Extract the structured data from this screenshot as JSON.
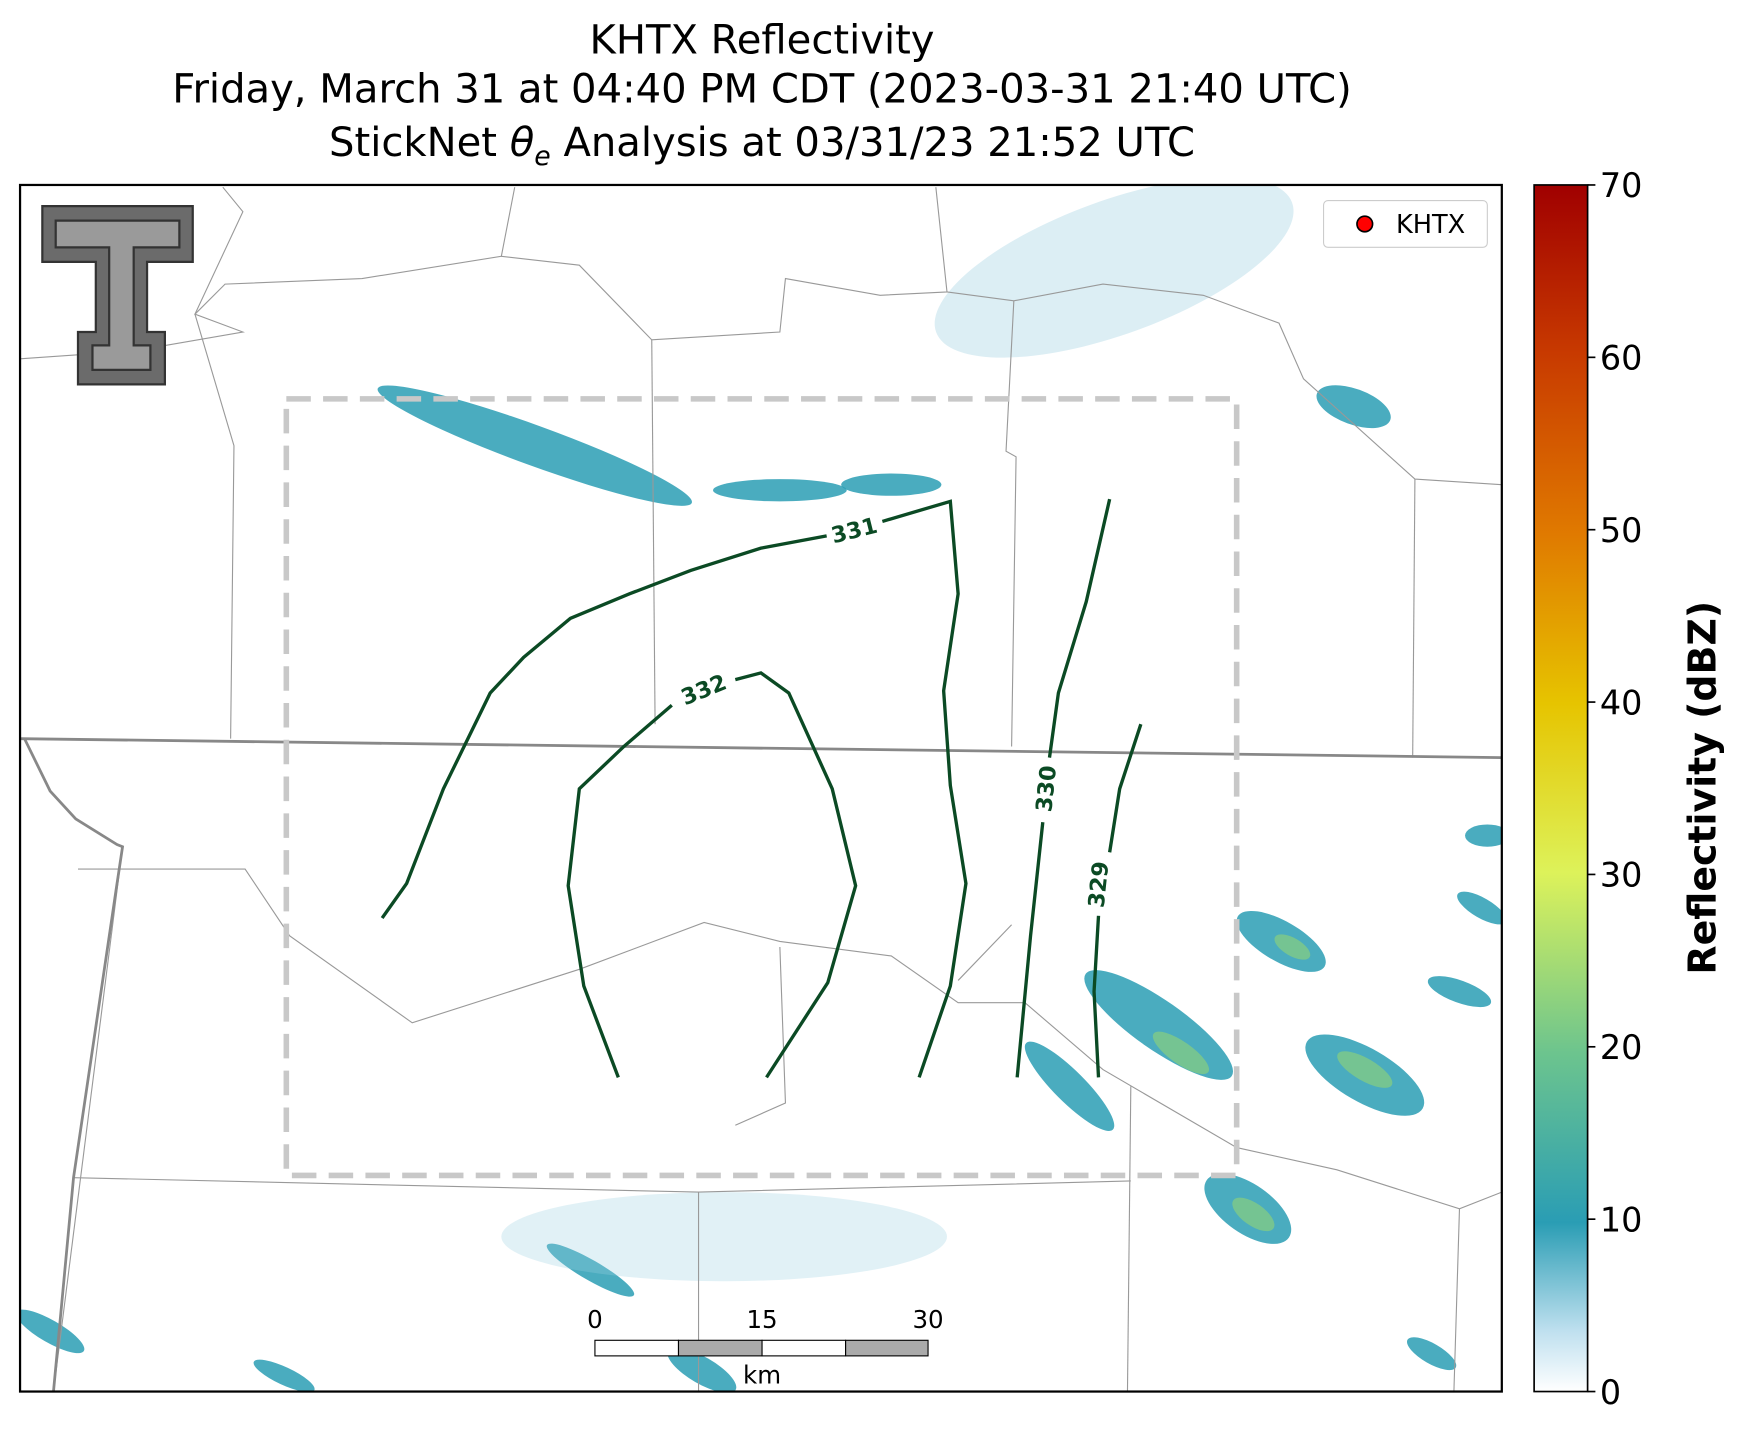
{
  "title": [
    "KHTX Reflectivity",
    "Friday, March 31 at 04:40 PM CDT (2023-03-31 21:40 UTC)"
  ],
  "subtitle": {
    "prefix": "StickNet ",
    "symbol": "θ",
    "subscript": "e",
    "suffix": " Analysis at 03/31/23 21:52 UTC"
  },
  "legend": {
    "label": "KHTX",
    "color": "#ff0000"
  },
  "contour_labels": [
    "331",
    "332",
    "330",
    "329"
  ],
  "scale_bar": {
    "labels": [
      "0",
      "15",
      "30"
    ],
    "unit": "km"
  },
  "colorbar": {
    "label": "Reflectivity (dBZ)",
    "lim": [
      0,
      70
    ],
    "ticks": [
      0,
      10,
      20,
      30,
      40,
      50,
      60,
      70
    ]
  }
}
